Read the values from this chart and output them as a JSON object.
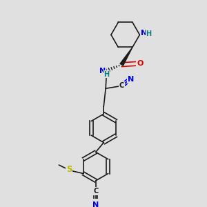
{
  "bg_color": "#e0e0e0",
  "atom_colors": {
    "C": "#1a1a1a",
    "N": "#0000ee",
    "O": "#dd0000",
    "S": "#bbbb00",
    "H": "#008080"
  },
  "bond_color": "#1a1a1a"
}
